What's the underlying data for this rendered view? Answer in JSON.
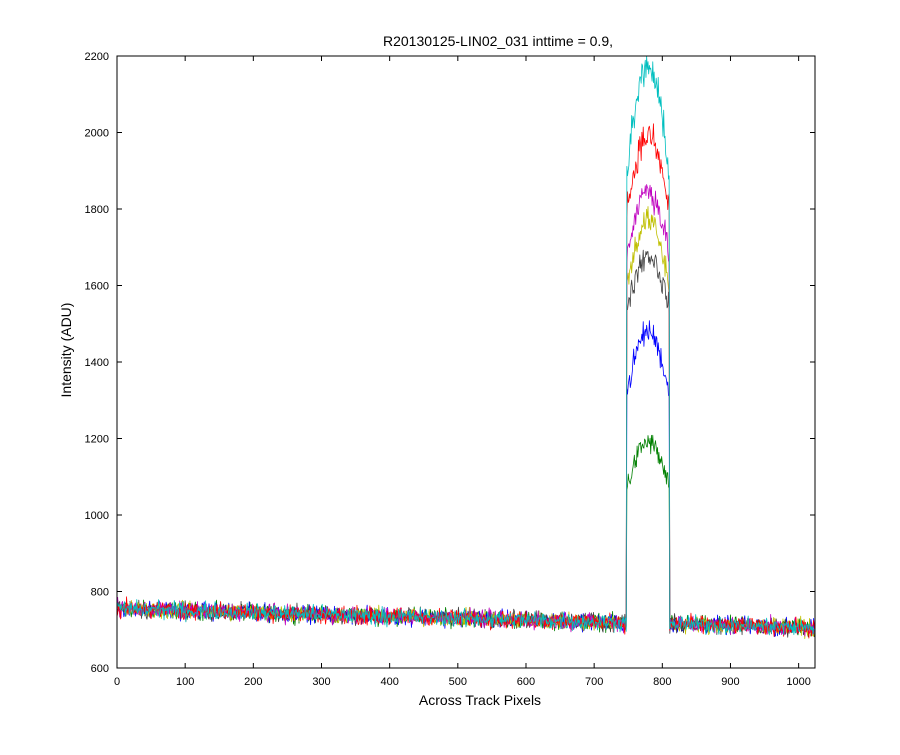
{
  "chart_data": {
    "type": "line",
    "title": "R20130125-LIN02_031 inttime = 0.9,",
    "xlabel": "Across Track Pixels",
    "ylabel": "Intensity (ADU)",
    "xlim": [
      0,
      1024
    ],
    "ylim": [
      600,
      2200
    ],
    "xticks": [
      0,
      100,
      200,
      300,
      400,
      500,
      600,
      700,
      800,
      900,
      1000
    ],
    "yticks": [
      600,
      800,
      1000,
      1200,
      1400,
      1600,
      1800,
      2000,
      2200
    ],
    "grid": false,
    "legend": "none",
    "baseline": {
      "x_start": 0,
      "value_start": 755,
      "x_end": 1024,
      "value_end": 705
    },
    "peak_region": {
      "x_start": 748,
      "x_end": 810
    },
    "series": [
      {
        "color": "#008000",
        "peak_edge": 1070,
        "peak_max": 1190
      },
      {
        "color": "#0000ff",
        "peak_edge": 1320,
        "peak_max": 1480
      },
      {
        "color": "#404040",
        "peak_edge": 1540,
        "peak_max": 1680
      },
      {
        "color": "#bfbf00",
        "peak_edge": 1600,
        "peak_max": 1770
      },
      {
        "color": "#bf00bf",
        "peak_edge": 1680,
        "peak_max": 1850
      },
      {
        "color": "#ff0000",
        "peak_edge": 1800,
        "peak_max": 1990
      },
      {
        "color": "#00bfbf",
        "peak_edge": 1900,
        "peak_max": 2170
      }
    ]
  }
}
